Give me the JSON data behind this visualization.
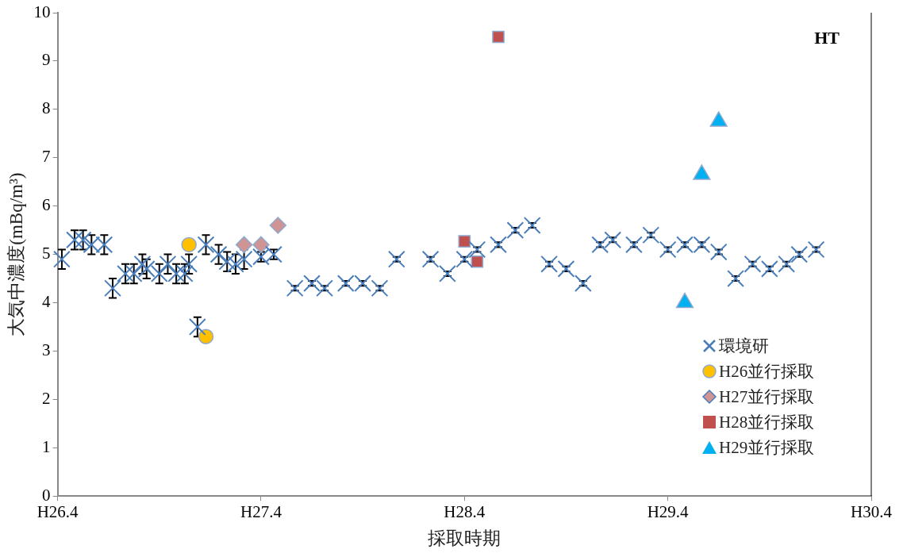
{
  "chart_data": {
    "type": "scatter",
    "xlabel": "採取時期",
    "ylabel": "大気中濃度(mBq/m³)",
    "annotations": [
      "HT"
    ],
    "categories": [
      "H26.4",
      null,
      null,
      null,
      null,
      null,
      null,
      null,
      null,
      null,
      null,
      null,
      null,
      null,
      null,
      null,
      null,
      null,
      null,
      null,
      null,
      null,
      null,
      null,
      null,
      null,
      null,
      null,
      null,
      null,
      null,
      null,
      null,
      null,
      null,
      null,
      null,
      null,
      null,
      null,
      null,
      null,
      null,
      null,
      null,
      null,
      null,
      null,
      "H27.4",
      null,
      null,
      null,
      null,
      null,
      null,
      null,
      null,
      null,
      null,
      null,
      null,
      null,
      null,
      null,
      null,
      null,
      null,
      null,
      null,
      null,
      null,
      null,
      null,
      null,
      null,
      null,
      null,
      null,
      null,
      null,
      null,
      null,
      null,
      null,
      null,
      null,
      null,
      null,
      null,
      null,
      null,
      null,
      null,
      null,
      null,
      null,
      "H28.4",
      null,
      null,
      null,
      null,
      null,
      null,
      null,
      null,
      null,
      null,
      null,
      null,
      null,
      null,
      null,
      null,
      null,
      null,
      null,
      null,
      null,
      null,
      null,
      null,
      null,
      null,
      null,
      null,
      null,
      null,
      null,
      null,
      null,
      null,
      null,
      null,
      null,
      null,
      null,
      null,
      null,
      null,
      null,
      null,
      null,
      null,
      null,
      "H29.4",
      null,
      null,
      null,
      null,
      null,
      null,
      null,
      null,
      null,
      null,
      null,
      null,
      null,
      null,
      null,
      null,
      null,
      null,
      null,
      null,
      null,
      null,
      null,
      null,
      null,
      null,
      null,
      null,
      null,
      null,
      null,
      null,
      null,
      null,
      null,
      null,
      null,
      null,
      null,
      null,
      null,
      null,
      null,
      null,
      null,
      null,
      null,
      "H30.4"
    ],
    "ylim": [
      0,
      10
    ],
    "yticks": [
      0,
      1,
      2,
      3,
      4,
      5,
      6,
      7,
      8,
      9,
      10
    ],
    "grid": false,
    "legend": "bottom right",
    "series": [
      {
        "name": "環境研",
        "color": "#4a7ebb",
        "marker": "cross",
        "values": [
          null,
          4.9,
          null,
          null,
          5.3,
          null,
          5.3,
          null,
          5.2,
          null,
          null,
          5.2,
          null,
          4.3,
          null,
          null,
          4.6,
          null,
          4.6,
          null,
          4.8,
          4.7,
          null,
          null,
          4.6,
          null,
          4.8,
          null,
          4.6,
          null,
          4.6,
          4.8,
          null,
          3.5,
          null,
          5.2,
          null,
          null,
          5.0,
          null,
          4.85,
          null,
          4.8,
          null,
          4.9,
          null,
          null,
          null,
          4.95,
          null,
          null,
          5.0,
          null,
          null,
          null,
          null,
          4.3,
          null,
          null,
          null,
          4.4,
          null,
          null,
          4.3,
          null,
          null,
          null,
          null,
          4.4,
          null,
          null,
          null,
          4.4,
          null,
          null,
          null,
          4.3,
          null,
          null,
          null,
          4.9,
          null,
          null,
          null,
          null,
          null,
          null,
          null,
          4.9,
          null,
          null,
          null,
          4.6,
          null,
          null,
          null,
          4.9,
          null,
          null,
          5.1,
          null,
          null,
          null,
          null,
          5.2,
          null,
          null,
          null,
          5.5,
          null,
          null,
          null,
          5.6,
          null,
          null,
          null,
          4.8,
          null,
          null,
          null,
          4.7,
          null,
          null,
          null,
          4.4,
          null,
          null,
          null,
          5.2,
          null,
          null,
          5.3,
          null,
          null,
          null,
          null,
          5.2,
          null,
          null,
          null,
          5.4,
          null,
          null,
          null,
          5.1,
          null,
          null,
          null,
          5.2,
          null,
          null,
          null,
          5.2,
          null,
          null,
          null,
          5.05,
          null,
          null,
          null,
          4.5,
          null,
          null,
          null,
          4.8,
          null,
          null,
          null,
          4.7,
          null,
          null,
          null,
          4.8,
          null,
          null,
          5.0,
          null,
          null,
          null,
          5.1,
          null,
          null,
          null,
          null,
          null,
          null,
          null,
          null,
          null,
          null,
          null,
          null,
          null
        ],
        "errors": [
          null,
          0.2,
          null,
          null,
          0.2,
          null,
          0.2,
          null,
          0.2,
          null,
          null,
          0.2,
          null,
          0.2,
          null,
          null,
          0.2,
          null,
          0.2,
          null,
          0.2,
          0.2,
          null,
          null,
          0.2,
          null,
          0.2,
          null,
          0.2,
          null,
          0.2,
          0.2,
          null,
          0.2,
          null,
          0.2,
          null,
          null,
          0.2,
          null,
          0.2,
          null,
          0.2,
          null,
          0.2,
          null,
          null,
          null,
          0.1,
          null,
          null,
          0.1,
          null,
          null,
          null,
          null,
          0.05,
          null,
          null,
          null,
          0.05,
          null,
          null,
          0.05,
          null,
          null,
          null,
          null,
          0.05,
          null,
          null,
          null,
          0.05,
          null,
          null,
          null,
          0.05,
          null,
          null,
          null,
          0.05,
          null,
          null,
          null,
          null,
          null,
          null,
          null,
          0.05,
          null,
          null,
          null,
          0.05,
          null,
          null,
          null,
          0.05,
          null,
          null,
          0.05,
          null,
          null,
          null,
          null,
          0.05,
          null,
          null,
          null,
          0.05,
          null,
          null,
          null,
          0.05,
          null,
          null,
          null,
          0.05,
          null,
          null,
          null,
          0.05,
          null,
          null,
          null,
          0.05,
          null,
          null,
          null,
          0.05,
          null,
          null,
          0.05,
          null,
          null,
          null,
          null,
          0.05,
          null,
          null,
          null,
          0.05,
          null,
          null,
          null,
          0.05,
          null,
          null,
          null,
          0.05,
          null,
          null,
          null,
          0.05,
          null,
          null,
          null,
          0.05,
          null,
          null,
          null,
          0.05,
          null,
          null,
          null,
          0.05,
          null,
          null,
          null,
          0.05,
          null,
          null,
          null,
          0.05,
          null,
          null,
          0.05,
          null,
          null,
          null,
          0.05,
          null,
          null,
          null,
          null,
          null,
          null,
          null,
          null,
          null,
          null,
          null,
          null,
          null
        ]
      },
      {
        "name": "H26並行採取",
        "color": "#ffc000",
        "marker": "circle",
        "values": [
          null,
          null,
          null,
          null,
          null,
          null,
          null,
          null,
          null,
          null,
          null,
          null,
          null,
          null,
          null,
          null,
          null,
          null,
          null,
          null,
          null,
          null,
          null,
          null,
          null,
          null,
          null,
          null,
          null,
          null,
          null,
          5.2,
          null,
          null,
          null,
          3.3,
          null,
          null,
          null,
          null,
          null,
          null,
          null,
          null,
          null,
          null,
          null,
          null,
          null,
          null,
          null,
          null,
          null,
          null,
          null,
          null,
          null,
          null,
          null,
          null,
          null,
          null,
          null,
          null,
          null,
          null,
          null,
          null,
          null,
          null,
          null,
          null,
          null,
          null,
          null,
          null,
          null,
          null,
          null,
          null,
          null,
          null,
          null,
          null,
          null,
          null,
          null,
          null,
          null,
          null,
          null,
          null,
          null,
          null,
          null,
          null,
          null,
          null,
          null,
          null,
          null,
          null,
          null,
          null,
          null,
          null,
          null,
          null,
          null,
          null,
          null,
          null,
          null,
          null,
          null,
          null,
          null,
          null,
          null,
          null,
          null,
          null,
          null,
          null,
          null,
          null,
          null,
          null,
          null,
          null,
          null,
          null,
          null,
          null,
          null,
          null,
          null,
          null,
          null,
          null,
          null,
          null,
          null,
          null,
          null,
          null,
          null,
          null,
          null,
          null,
          null,
          null,
          null,
          null,
          null,
          null,
          null,
          null,
          null,
          null,
          null,
          null,
          null,
          null,
          null,
          null,
          null,
          null,
          null,
          null,
          null,
          null,
          null,
          null,
          null,
          null,
          null,
          null,
          null,
          null,
          null,
          null,
          null,
          null,
          null,
          null,
          null,
          null,
          null,
          null,
          null,
          null,
          null
        ]
      },
      {
        "name": "H27並行採取",
        "color": "#d09494",
        "marker": "diamond",
        "values": [
          null,
          null,
          null,
          null,
          null,
          null,
          null,
          null,
          null,
          null,
          null,
          null,
          null,
          null,
          null,
          null,
          null,
          null,
          null,
          null,
          null,
          null,
          null,
          null,
          null,
          null,
          null,
          null,
          null,
          null,
          null,
          null,
          null,
          null,
          null,
          null,
          null,
          null,
          null,
          null,
          null,
          null,
          null,
          null,
          5.2,
          null,
          null,
          null,
          5.2,
          null,
          null,
          null,
          5.6,
          null,
          null,
          null,
          null,
          null,
          null,
          null,
          null,
          null,
          null,
          null,
          null,
          null,
          null,
          null,
          null,
          null,
          null,
          null,
          null,
          null,
          null,
          null,
          null,
          null,
          null,
          null,
          null,
          null,
          null,
          null,
          null,
          null,
          null,
          null,
          null,
          null,
          null,
          null,
          null,
          null,
          null,
          null,
          null,
          null,
          null,
          null,
          null,
          null,
          null,
          null,
          null,
          null,
          null,
          null,
          null,
          null,
          null,
          null,
          null,
          null,
          null,
          null,
          null,
          null,
          null,
          null,
          null,
          null,
          null,
          null,
          null,
          null,
          null,
          null,
          null,
          null,
          null,
          null,
          null,
          null,
          null,
          null,
          null,
          null,
          null,
          null,
          null,
          null,
          null,
          null,
          null,
          null,
          null,
          null,
          null,
          null,
          null,
          null,
          null,
          null,
          null,
          null,
          null,
          null,
          null,
          null,
          null,
          null,
          null,
          null,
          null,
          null,
          null,
          null,
          null,
          null,
          null,
          null,
          null,
          null,
          null,
          null,
          null,
          null,
          null,
          null,
          null,
          null,
          null,
          null,
          null,
          null,
          null,
          null,
          null,
          null,
          null,
          null,
          null
        ]
      },
      {
        "name": "H28並行採取",
        "color": "#c0504d",
        "marker": "square",
        "values": [
          null,
          null,
          null,
          null,
          null,
          null,
          null,
          null,
          null,
          null,
          null,
          null,
          null,
          null,
          null,
          null,
          null,
          null,
          null,
          null,
          null,
          null,
          null,
          null,
          null,
          null,
          null,
          null,
          null,
          null,
          null,
          null,
          null,
          null,
          null,
          null,
          null,
          null,
          null,
          null,
          null,
          null,
          null,
          null,
          null,
          null,
          null,
          null,
          null,
          null,
          null,
          null,
          null,
          null,
          null,
          null,
          null,
          null,
          null,
          null,
          null,
          null,
          null,
          null,
          null,
          null,
          null,
          null,
          null,
          null,
          null,
          null,
          null,
          null,
          null,
          null,
          null,
          null,
          null,
          null,
          null,
          null,
          null,
          null,
          null,
          null,
          null,
          null,
          null,
          null,
          null,
          null,
          null,
          null,
          null,
          null,
          5.27,
          null,
          null,
          4.85,
          null,
          null,
          null,
          null,
          9.5,
          null,
          null,
          null,
          null,
          null,
          null,
          null,
          null,
          null,
          null,
          null,
          null,
          null,
          null,
          null,
          null,
          null,
          null,
          null,
          null,
          null,
          null,
          null,
          null,
          null,
          null,
          null,
          null,
          null,
          null,
          null,
          null,
          null,
          null,
          null,
          null,
          null,
          null,
          null,
          null,
          null,
          null,
          null,
          null,
          null,
          null,
          null,
          null,
          null,
          null,
          null,
          null,
          null,
          null,
          null,
          null,
          null,
          null,
          null,
          null,
          null,
          null,
          null,
          null,
          null,
          null,
          null,
          null,
          null,
          null,
          null,
          null,
          null,
          null,
          null,
          null,
          null,
          null,
          null,
          null,
          null,
          null,
          null,
          null,
          null,
          null,
          null,
          null
        ]
      },
      {
        "name": "H29並行採取",
        "color": "#00b0f0",
        "marker": "triangle",
        "values": [
          null,
          null,
          null,
          null,
          null,
          null,
          null,
          null,
          null,
          null,
          null,
          null,
          null,
          null,
          null,
          null,
          null,
          null,
          null,
          null,
          null,
          null,
          null,
          null,
          null,
          null,
          null,
          null,
          null,
          null,
          null,
          null,
          null,
          null,
          null,
          null,
          null,
          null,
          null,
          null,
          null,
          null,
          null,
          null,
          null,
          null,
          null,
          null,
          null,
          null,
          null,
          null,
          null,
          null,
          null,
          null,
          null,
          null,
          null,
          null,
          null,
          null,
          null,
          null,
          null,
          null,
          null,
          null,
          null,
          null,
          null,
          null,
          null,
          null,
          null,
          null,
          null,
          null,
          null,
          null,
          null,
          null,
          null,
          null,
          null,
          null,
          null,
          null,
          null,
          null,
          null,
          null,
          null,
          null,
          null,
          null,
          null,
          null,
          null,
          null,
          null,
          null,
          null,
          null,
          null,
          null,
          null,
          null,
          null,
          null,
          null,
          null,
          null,
          null,
          null,
          null,
          null,
          null,
          null,
          null,
          null,
          null,
          null,
          null,
          null,
          null,
          null,
          null,
          null,
          null,
          null,
          null,
          null,
          null,
          null,
          null,
          null,
          null,
          null,
          null,
          null,
          null,
          null,
          null,
          null,
          null,
          null,
          null,
          4.0,
          null,
          null,
          null,
          6.65,
          null,
          null,
          null,
          7.75,
          null,
          null,
          null,
          null,
          null,
          null,
          null,
          null,
          null,
          null,
          null,
          null,
          null,
          null,
          null,
          null,
          null,
          null,
          null,
          null,
          null,
          null,
          null,
          null,
          null,
          null,
          null,
          null,
          null,
          null,
          null,
          null,
          null,
          null,
          null,
          null
        ]
      }
    ]
  }
}
